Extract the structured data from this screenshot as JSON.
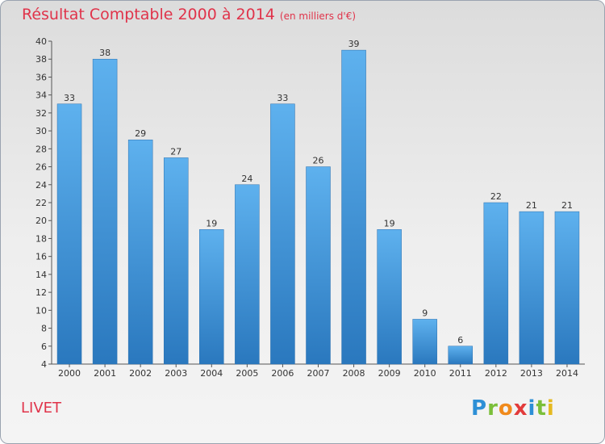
{
  "chart_data": {
    "type": "bar",
    "title": "Résultat Comptable 2000 à 2014",
    "subtitle": "(en milliers d'€)",
    "xlabel": "",
    "ylabel": "",
    "ylim": [
      4,
      40
    ],
    "ytick_step": 2,
    "categories": [
      "2000",
      "2001",
      "2002",
      "2003",
      "2004",
      "2005",
      "2006",
      "2007",
      "2008",
      "2009",
      "2010",
      "2011",
      "2012",
      "2013",
      "2014"
    ],
    "values": [
      33,
      38,
      29,
      27,
      19,
      24,
      33,
      26,
      39,
      19,
      9,
      6,
      22,
      21,
      21
    ],
    "grid": false,
    "bar_color": "#3a94da"
  },
  "footer": {
    "town": "LIVET"
  },
  "logo": {
    "letters": [
      "P",
      "r",
      "o",
      "x",
      "i",
      "t",
      "i"
    ],
    "colors": [
      "#2d8fd6",
      "#7bbf3a",
      "#f08a1c",
      "#e23b3b",
      "#2d8fd6",
      "#7bbf3a",
      "#e5b920"
    ]
  }
}
